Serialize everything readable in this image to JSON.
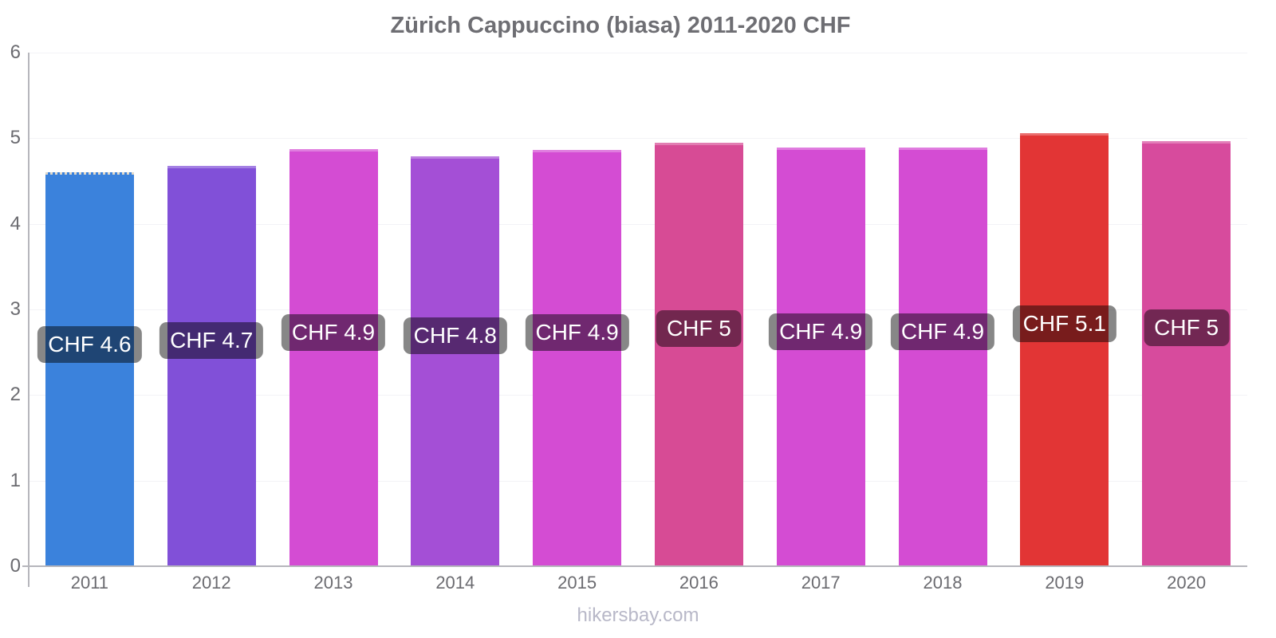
{
  "page": {
    "title": "Zürich Cappuccino (biasa) 2011-2020 CHF",
    "footer_text": "hikersbay.com"
  },
  "chart_data": {
    "type": "bar",
    "title": "Zürich Cappuccino (biasa) 2011-2020 CHF",
    "currency": "CHF",
    "categories": [
      "2011",
      "2012",
      "2013",
      "2014",
      "2015",
      "2016",
      "2017",
      "2018",
      "2019",
      "2020"
    ],
    "values": [
      4.6,
      4.68,
      4.87,
      4.79,
      4.86,
      4.95,
      4.89,
      4.89,
      5.06,
      4.97
    ],
    "bar_labels": [
      "CHF 4.6",
      "CHF 4.7",
      "CHF 4.9",
      "CHF 4.8",
      "CHF 4.9",
      "CHF 5",
      "CHF 4.9",
      "CHF 4.9",
      "CHF 5.1",
      "CHF 5"
    ],
    "bar_colors": [
      "#3b82dc",
      "#8150d8",
      "#d44cd3",
      "#a44fd6",
      "#d44cd3",
      "#d74b95",
      "#d44cd3",
      "#d44cd3",
      "#e23535",
      "#d74b9d"
    ],
    "ylim": [
      0,
      6
    ],
    "y_ticks": [
      0,
      1,
      2,
      3,
      4,
      5,
      6
    ],
    "xlabel": "",
    "ylabel": "",
    "legend": "none",
    "grid": "horizontal-faint",
    "label_style": {
      "text_color": "#ffffff",
      "background": "rgba(0,0,0,0.47)"
    }
  },
  "colors": {
    "background": "#ffffff",
    "title_text": "#6e6e73",
    "axis_line": "#b6b6bc",
    "tick_label_text": "#6b6b70",
    "gridline": "#f3f3f6",
    "footer_text": "#b8b8c8"
  }
}
